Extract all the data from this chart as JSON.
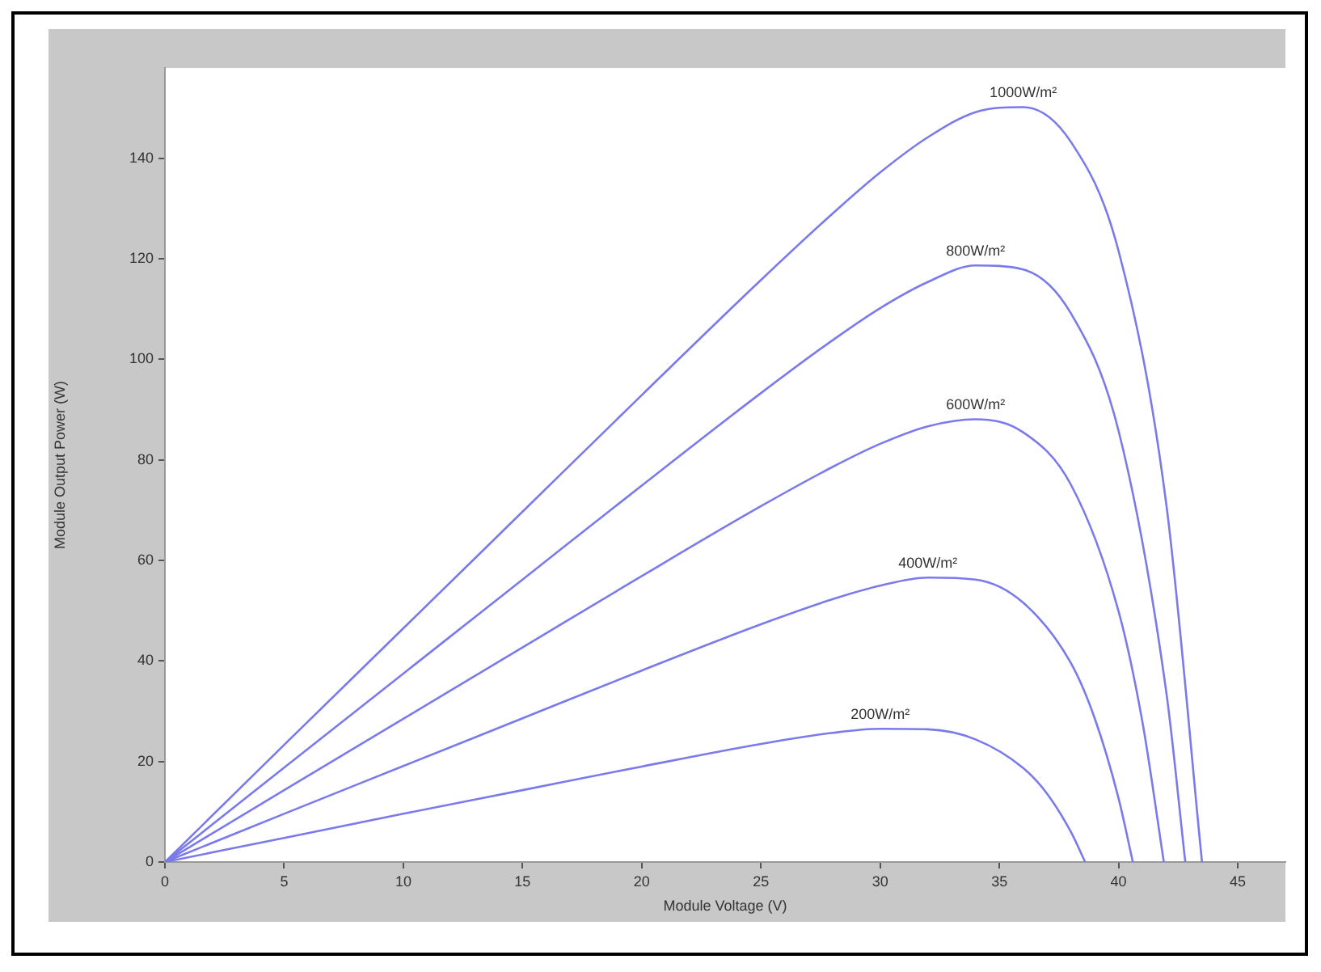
{
  "chart_data": {
    "type": "line",
    "xlabel": "Module Voltage (V)",
    "ylabel": "Module Output Power (W)",
    "xlim": [
      0,
      47
    ],
    "xticks": [
      0,
      5,
      10,
      15,
      20,
      25,
      30,
      35,
      40,
      45
    ],
    "ylim": [
      0,
      158
    ],
    "yticks": [
      0,
      20,
      40,
      60,
      80,
      100,
      120,
      140
    ],
    "grid": false,
    "legend": false,
    "marker": "none",
    "line_style": "solid",
    "series": [
      {
        "name": "1000W/m²",
        "color": "#7a7aec",
        "x": [
          0,
          5,
          10,
          15,
          20,
          25,
          28,
          30,
          32,
          34,
          36,
          38,
          40,
          42,
          43.5
        ],
        "values": [
          0,
          23.3,
          46.5,
          69.7,
          92.9,
          115.8,
          129.0,
          137.2,
          144.2,
          149.2,
          150.2,
          143.3,
          121.6,
          71.3,
          0
        ]
      },
      {
        "name": "800W/m²",
        "color": "#7a7aec",
        "x": [
          0,
          5,
          10,
          15,
          20,
          25,
          28,
          30,
          32,
          34,
          36,
          38,
          40,
          42,
          42.8
        ],
        "values": [
          0,
          18.8,
          37.5,
          56.2,
          74.9,
          93.3,
          103.8,
          110.2,
          115.4,
          118.7,
          117.9,
          109.2,
          85.8,
          33.9,
          0
        ]
      },
      {
        "name": "600W/m²",
        "color": "#7a7aec",
        "x": [
          0,
          5,
          10,
          15,
          20,
          25,
          28,
          30,
          32,
          34,
          36,
          38,
          40,
          41,
          41.9
        ],
        "values": [
          0,
          14.3,
          28.5,
          42.7,
          56.9,
          70.8,
          78.6,
          83.2,
          86.7,
          88.1,
          85.5,
          75.1,
          49.9,
          27.9,
          0
        ]
      },
      {
        "name": "400W/m²",
        "color": "#7a7aec",
        "x": [
          0,
          5,
          10,
          15,
          20,
          25,
          28,
          30,
          32,
          34,
          36,
          38,
          39,
          40,
          40.6
        ],
        "values": [
          0,
          9.6,
          19.1,
          28.6,
          38.1,
          47.3,
          52.3,
          55.0,
          56.6,
          56.2,
          51.6,
          39.6,
          28.6,
          12.7,
          0
        ]
      },
      {
        "name": "200W/m²",
        "color": "#7a7aec",
        "x": [
          0,
          5,
          10,
          15,
          20,
          25,
          28,
          30,
          32,
          34,
          36,
          37,
          38,
          38.6
        ],
        "values": [
          0,
          4.8,
          9.6,
          14.3,
          19.0,
          23.5,
          25.7,
          26.5,
          26.4,
          24.4,
          18.7,
          13.6,
          6.0,
          0
        ]
      }
    ]
  }
}
